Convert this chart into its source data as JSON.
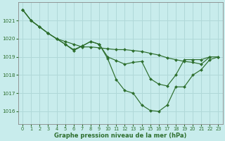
{
  "title": "Graphe pression niveau de la mer (hPa)",
  "background_color": "#c8ecec",
  "grid_color": "#b0d8d8",
  "line_color": "#2d6e2d",
  "xlim": [
    -0.5,
    23.5
  ],
  "ylim": [
    1015.3,
    1022.0
  ],
  "yticks": [
    1016,
    1017,
    1018,
    1019,
    1020,
    1021
  ],
  "xticks": [
    0,
    1,
    2,
    3,
    4,
    5,
    6,
    7,
    8,
    9,
    10,
    11,
    12,
    13,
    14,
    15,
    16,
    17,
    18,
    19,
    20,
    21,
    22,
    23
  ],
  "series": [
    {
      "x": [
        0,
        1,
        2,
        3,
        4,
        5,
        6,
        7,
        8,
        9,
        10,
        11,
        12,
        13,
        14,
        15,
        16,
        17,
        18,
        19,
        20,
        21,
        22,
        23
      ],
      "y": [
        1021.6,
        1021.0,
        1020.65,
        1020.3,
        1020.0,
        1019.85,
        1019.7,
        1019.55,
        1019.55,
        1019.5,
        1019.45,
        1019.4,
        1019.4,
        1019.35,
        1019.3,
        1019.2,
        1019.1,
        1018.95,
        1018.85,
        1018.75,
        1018.7,
        1018.6,
        1019.0,
        1019.0
      ]
    },
    {
      "x": [
        0,
        1,
        2,
        3,
        4,
        5,
        6,
        7,
        8,
        9,
        10,
        11,
        12,
        13,
        14,
        15,
        16,
        17,
        18,
        19,
        20,
        21,
        22
      ],
      "y": [
        1021.6,
        1021.0,
        1020.65,
        1020.3,
        1020.0,
        1019.7,
        1019.4,
        1019.6,
        1019.85,
        1019.7,
        1019.0,
        1018.8,
        1018.6,
        1018.7,
        1018.75,
        1017.8,
        1017.5,
        1017.4,
        1018.0,
        1018.85,
        1018.85,
        1018.85,
        1019.0
      ]
    },
    {
      "x": [
        0,
        1,
        2,
        3,
        4,
        5,
        6,
        7,
        8,
        9,
        10,
        11,
        12,
        13,
        14,
        15,
        16,
        17,
        18,
        19,
        20,
        21,
        22,
        23
      ],
      "y": [
        1021.6,
        1021.0,
        1020.65,
        1020.3,
        1020.0,
        1019.7,
        1019.35,
        1019.6,
        1019.85,
        1019.7,
        1018.9,
        1017.75,
        1017.15,
        1017.0,
        1016.35,
        1016.05,
        1016.0,
        1016.35,
        1017.35,
        1017.35,
        1018.0,
        1018.3,
        1018.85,
        1019.0
      ]
    }
  ]
}
